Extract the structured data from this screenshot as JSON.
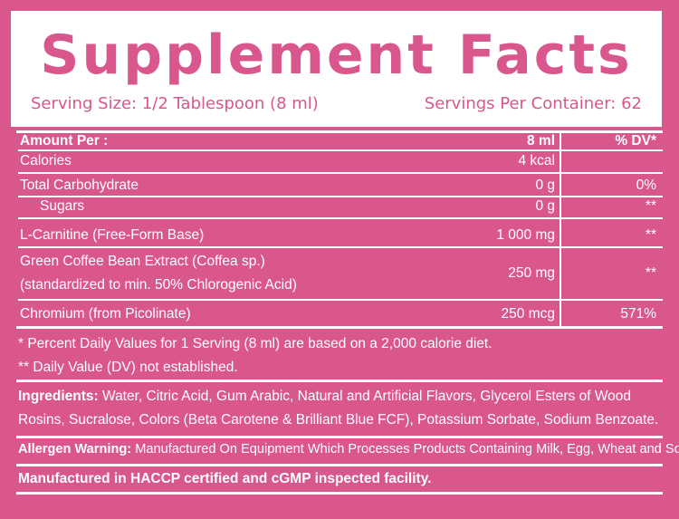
{
  "header": {
    "title": "Supplement Facts",
    "serving_size": "Serving Size: 1/2 Tablespoon (8 ml)",
    "servings_per_container": "Servings Per Container: 62"
  },
  "table": {
    "columns": [
      "Amount Per :",
      "8 ml",
      "% DV*"
    ],
    "rows": [
      {
        "label": "Calories",
        "amount": "4 kcal",
        "dv": ""
      },
      {
        "label": "Total Carbohydrate",
        "amount": "0 g",
        "dv": "0%"
      },
      {
        "label": "Sugars",
        "amount": "0 g",
        "dv": "**"
      },
      {
        "label": "L-Carnitine (Free-Form Base)",
        "amount": "1 000 mg",
        "dv": "**"
      },
      {
        "label_line1": "Green Coffee Bean Extract (Coffea sp.)",
        "label_line2": "(standardized to min. 50% Chlorogenic Acid)",
        "amount": "250 mg",
        "dv": "**"
      },
      {
        "label": "Chromium (from Picolinate)",
        "amount": "250 mcg",
        "dv": "571%"
      }
    ]
  },
  "footnotes": {
    "percent_dv": "* Percent Daily Values for 1 Serving (8 ml) are based on a 2,000 calorie diet.",
    "not_established": "** Daily Value (DV) not established."
  },
  "ingredients": {
    "label": "Ingredients:",
    "line1": " Water, Citric Acid, Gum Arabic, Natural and Artificial Flavors, Glycerol Esters of Wood",
    "line2": "Rosins, Sucralose, Colors (Beta Carotene & Brilliant Blue FCF), Potassium Sorbate, Sodium Benzoate."
  },
  "allergen": {
    "label": "Allergen Warning:",
    "text": " Manufactured On Equipment Which Processes Products Containing Milk, Egg, Wheat and Soy."
  },
  "facility": "Manufactured in HACCP certified and cGMP inspected facility.",
  "colors": {
    "background": "#d9578c",
    "panel": "#ffffff",
    "text": "#ffffff"
  }
}
